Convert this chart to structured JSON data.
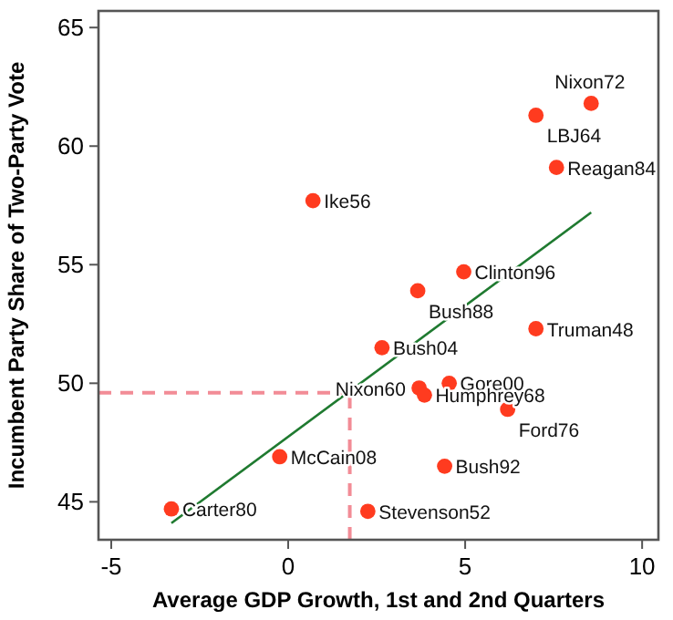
{
  "chart_data": {
    "type": "scatter",
    "xlabel": "Average GDP Growth, 1st and 2nd Quarters",
    "ylabel": "Incumbent Party Share of Two-Party Vote",
    "xlim": [
      -5.36,
      10.46
    ],
    "ylim": [
      43.4,
      65.7
    ],
    "xticks": [
      -5,
      0,
      5,
      10
    ],
    "yticks": [
      45,
      50,
      55,
      60,
      65
    ],
    "grid": false,
    "marker": "circle",
    "series": [
      {
        "color": "#ff3b1f",
        "x": [
          8.56,
          7.0,
          7.58,
          0.7,
          4.96,
          3.66,
          7.0,
          2.65,
          4.55,
          3.7,
          3.85,
          6.2,
          -0.24,
          4.42,
          -3.3,
          2.25
        ],
        "values": [
          61.8,
          61.3,
          59.1,
          57.7,
          54.7,
          53.9,
          52.3,
          51.5,
          50.0,
          49.8,
          49.5,
          48.9,
          46.9,
          46.5,
          44.7,
          44.6
        ]
      },
      {
        "type": "line",
        "color": "#1f7a30",
        "x": [
          -3.3,
          8.56
        ],
        "values": [
          44.1,
          57.2
        ],
        "marker": "none",
        "line_style": "solid"
      }
    ],
    "ref_lines": [
      {
        "axis": "y",
        "value": 49.6,
        "color": "#f28c96",
        "line_style": "dashed"
      },
      {
        "axis": "x",
        "value": 1.74,
        "color": "#f28c96",
        "line_style": "dashed"
      }
    ],
    "annotations": [
      {
        "text": "Nixon72",
        "x": 8.56,
        "y": 61.8
      },
      {
        "text": "LBJ64",
        "x": 7.0,
        "y": 61.3
      },
      {
        "text": "Reagan84",
        "x": 7.58,
        "y": 59.1
      },
      {
        "text": "Ike56",
        "x": 0.7,
        "y": 57.7
      },
      {
        "text": "Clinton96",
        "x": 4.96,
        "y": 54.7
      },
      {
        "text": "Bush88",
        "x": 3.66,
        "y": 53.9
      },
      {
        "text": "Truman48",
        "x": 7.0,
        "y": 52.3
      },
      {
        "text": "Bush04",
        "x": 2.65,
        "y": 51.5
      },
      {
        "text": "Gore00",
        "x": 4.55,
        "y": 50.0
      },
      {
        "text": "Nixon60",
        "x": 3.7,
        "y": 49.8
      },
      {
        "text": "Humphrey68",
        "x": 3.85,
        "y": 49.5
      },
      {
        "text": "Ford76",
        "x": 6.2,
        "y": 48.9
      },
      {
        "text": "McCain08",
        "x": -0.24,
        "y": 46.9
      },
      {
        "text": "Bush92",
        "x": 4.42,
        "y": 46.5
      },
      {
        "text": "Carter80",
        "x": -3.3,
        "y": 44.7
      },
      {
        "text": "Stevenson52",
        "x": 2.25,
        "y": 44.6
      }
    ]
  }
}
